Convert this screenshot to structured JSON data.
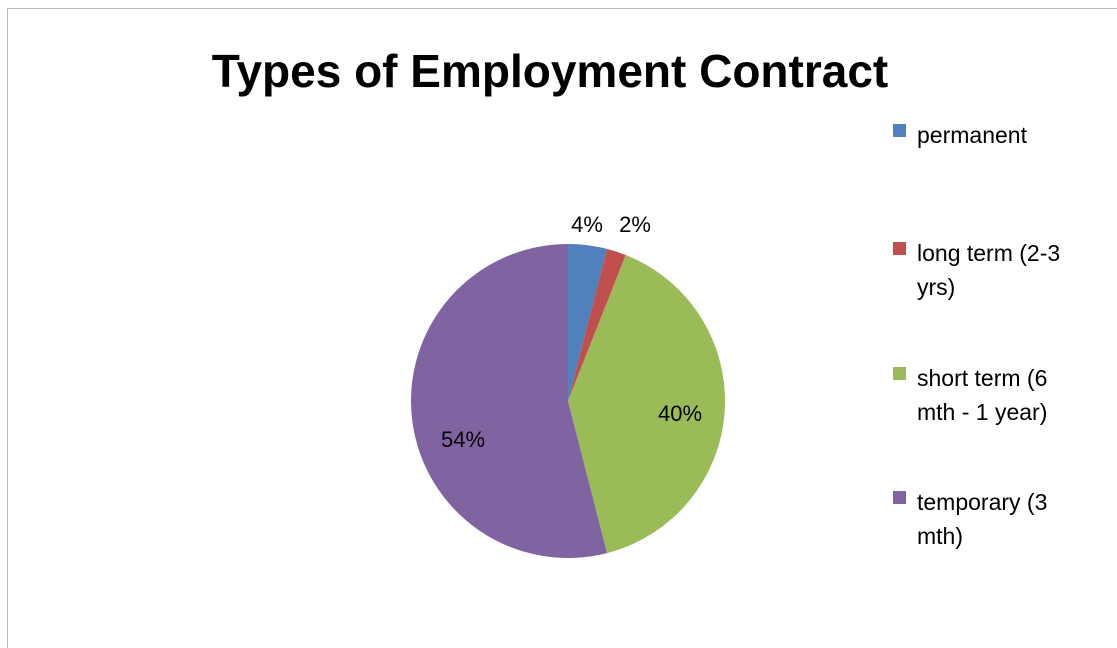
{
  "chart_data": {
    "type": "pie",
    "title": "Types of Employment Contract",
    "categories": [
      "permanent",
      "long term (2-3 yrs)",
      "short term (6 mth - 1 year)",
      "temporary (3 mth)"
    ],
    "values": [
      4,
      2,
      40,
      54
    ],
    "data_labels": [
      "4%",
      "2%",
      "40%",
      "54%"
    ],
    "colors": [
      "#4f81bd",
      "#c0504d",
      "#9bbb59",
      "#8064a2"
    ],
    "legend_position": "right",
    "start_angle_deg": 0,
    "direction": "clockwise"
  }
}
